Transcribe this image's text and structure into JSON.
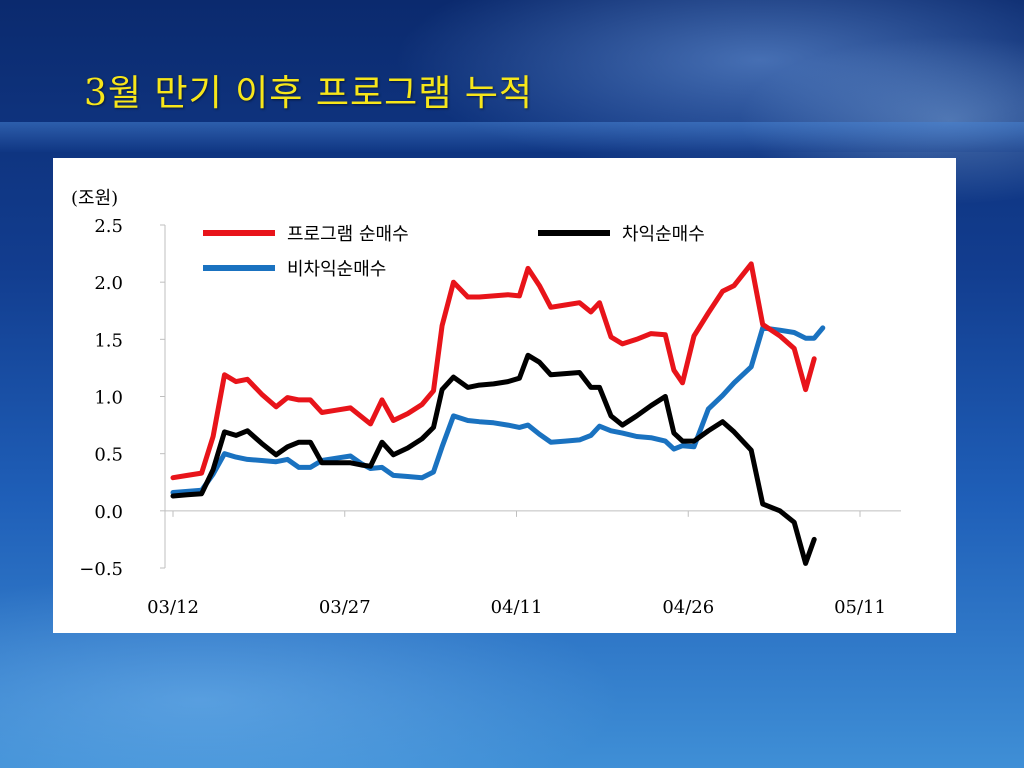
{
  "slide": {
    "title": "3월 만기 이후 프로그램 누적"
  },
  "colors": {
    "program_net_buy": "#e8141a",
    "arbitrage_net_buy": "#000000",
    "non_arbitrage_net_buy": "#1a72c0"
  },
  "chart_data": {
    "type": "line",
    "unit_label": "(조원)",
    "ylim": [
      -0.5,
      2.5
    ],
    "y_ticks": [
      "2.5",
      "2.0",
      "1.5",
      "1.0",
      "0.5",
      "0.0",
      "-0.5"
    ],
    "x_range": [
      0,
      49
    ],
    "x_ticks": [
      {
        "label": "03/12",
        "x": 0
      },
      {
        "label": "03/27",
        "x": 12
      },
      {
        "label": "04/11",
        "x": 24
      },
      {
        "label": "04/26",
        "x": 36
      },
      {
        "label": "05/11",
        "x": 48
      }
    ],
    "grid": false,
    "legend_position": "top",
    "series": [
      {
        "name": "프로그램 순매수",
        "color": "#e8141a",
        "points": [
          [
            0,
            0.29
          ],
          [
            1,
            0.31
          ],
          [
            2,
            0.33
          ],
          [
            2.8,
            0.65
          ],
          [
            3.6,
            1.19
          ],
          [
            4.4,
            1.13
          ],
          [
            5.2,
            1.15
          ],
          [
            6.2,
            1.02
          ],
          [
            7.2,
            0.91
          ],
          [
            8,
            0.99
          ],
          [
            8.8,
            0.97
          ],
          [
            9.6,
            0.97
          ],
          [
            10.4,
            0.86
          ],
          [
            11.4,
            0.88
          ],
          [
            12.4,
            0.9
          ],
          [
            13.2,
            0.82
          ],
          [
            13.8,
            0.76
          ],
          [
            14.6,
            0.97
          ],
          [
            15.4,
            0.79
          ],
          [
            16.4,
            0.85
          ],
          [
            17.4,
            0.93
          ],
          [
            18.2,
            1.05
          ],
          [
            18.8,
            1.62
          ],
          [
            19.6,
            2.0
          ],
          [
            20.6,
            1.87
          ],
          [
            21.4,
            1.87
          ],
          [
            22.4,
            1.88
          ],
          [
            23.4,
            1.89
          ],
          [
            24.2,
            1.88
          ],
          [
            24.8,
            2.12
          ],
          [
            25.6,
            1.97
          ],
          [
            26.4,
            1.78
          ],
          [
            27.4,
            1.8
          ],
          [
            28.4,
            1.82
          ],
          [
            29.2,
            1.74
          ],
          [
            29.8,
            1.82
          ],
          [
            30.6,
            1.52
          ],
          [
            31.4,
            1.46
          ],
          [
            32.4,
            1.5
          ],
          [
            33.4,
            1.55
          ],
          [
            34.4,
            1.54
          ],
          [
            35,
            1.23
          ],
          [
            35.6,
            1.12
          ],
          [
            36.4,
            1.53
          ],
          [
            37.4,
            1.73
          ],
          [
            38.4,
            1.92
          ],
          [
            39.2,
            1.97
          ],
          [
            40.4,
            2.16
          ],
          [
            41.2,
            1.63
          ],
          [
            42.4,
            1.53
          ],
          [
            43.4,
            1.42
          ],
          [
            44.2,
            1.06
          ],
          [
            44.8,
            1.33
          ]
        ]
      },
      {
        "name": "차익순매수",
        "color": "#000000",
        "points": [
          [
            0,
            0.13
          ],
          [
            1,
            0.14
          ],
          [
            2,
            0.15
          ],
          [
            2.8,
            0.36
          ],
          [
            3.6,
            0.69
          ],
          [
            4.4,
            0.66
          ],
          [
            5.2,
            0.7
          ],
          [
            6.2,
            0.59
          ],
          [
            7.2,
            0.49
          ],
          [
            8,
            0.56
          ],
          [
            8.8,
            0.6
          ],
          [
            9.6,
            0.6
          ],
          [
            10.4,
            0.42
          ],
          [
            11.4,
            0.42
          ],
          [
            12.4,
            0.42
          ],
          [
            13.2,
            0.4
          ],
          [
            13.8,
            0.39
          ],
          [
            14.6,
            0.6
          ],
          [
            15.4,
            0.49
          ],
          [
            16.4,
            0.55
          ],
          [
            17.4,
            0.63
          ],
          [
            18.2,
            0.73
          ],
          [
            18.8,
            1.06
          ],
          [
            19.6,
            1.17
          ],
          [
            20.6,
            1.08
          ],
          [
            21.4,
            1.1
          ],
          [
            22.4,
            1.11
          ],
          [
            23.4,
            1.13
          ],
          [
            24.2,
            1.16
          ],
          [
            24.8,
            1.36
          ],
          [
            25.6,
            1.3
          ],
          [
            26.4,
            1.19
          ],
          [
            27.4,
            1.2
          ],
          [
            28.4,
            1.21
          ],
          [
            29.2,
            1.08
          ],
          [
            29.8,
            1.08
          ],
          [
            30.6,
            0.83
          ],
          [
            31.4,
            0.75
          ],
          [
            32.4,
            0.83
          ],
          [
            33.4,
            0.92
          ],
          [
            34.4,
            1.0
          ],
          [
            35,
            0.68
          ],
          [
            35.6,
            0.61
          ],
          [
            36.4,
            0.61
          ],
          [
            37.4,
            0.7
          ],
          [
            38.4,
            0.78
          ],
          [
            39.2,
            0.69
          ],
          [
            40.4,
            0.53
          ],
          [
            41.2,
            0.06
          ],
          [
            42.4,
            0.0
          ],
          [
            43.4,
            -0.1
          ],
          [
            44.2,
            -0.46
          ],
          [
            44.8,
            -0.25
          ]
        ]
      },
      {
        "name": "비차익순매수",
        "color": "#1a72c0",
        "points": [
          [
            0,
            0.16
          ],
          [
            1,
            0.17
          ],
          [
            2,
            0.18
          ],
          [
            2.8,
            0.32
          ],
          [
            3.6,
            0.5
          ],
          [
            4.4,
            0.47
          ],
          [
            5.2,
            0.45
          ],
          [
            6.2,
            0.44
          ],
          [
            7.2,
            0.43
          ],
          [
            8,
            0.45
          ],
          [
            8.8,
            0.38
          ],
          [
            9.6,
            0.38
          ],
          [
            10.4,
            0.44
          ],
          [
            11.4,
            0.46
          ],
          [
            12.4,
            0.48
          ],
          [
            13.2,
            0.41
          ],
          [
            13.8,
            0.37
          ],
          [
            14.6,
            0.38
          ],
          [
            15.4,
            0.31
          ],
          [
            16.4,
            0.3
          ],
          [
            17.4,
            0.29
          ],
          [
            18.2,
            0.34
          ],
          [
            18.8,
            0.56
          ],
          [
            19.6,
            0.83
          ],
          [
            20.6,
            0.79
          ],
          [
            21.4,
            0.78
          ],
          [
            22.4,
            0.77
          ],
          [
            23.4,
            0.75
          ],
          [
            24.2,
            0.73
          ],
          [
            24.8,
            0.75
          ],
          [
            25.6,
            0.67
          ],
          [
            26.4,
            0.6
          ],
          [
            27.4,
            0.61
          ],
          [
            28.4,
            0.62
          ],
          [
            29.2,
            0.66
          ],
          [
            29.8,
            0.74
          ],
          [
            30.6,
            0.7
          ],
          [
            31.4,
            0.68
          ],
          [
            32.4,
            0.65
          ],
          [
            33.4,
            0.64
          ],
          [
            34.4,
            0.61
          ],
          [
            35,
            0.54
          ],
          [
            35.6,
            0.57
          ],
          [
            36.4,
            0.56
          ],
          [
            37.4,
            0.89
          ],
          [
            38.4,
            1.01
          ],
          [
            39.2,
            1.12
          ],
          [
            40.4,
            1.26
          ],
          [
            41.2,
            1.6
          ],
          [
            42.4,
            1.58
          ],
          [
            43.4,
            1.56
          ],
          [
            44.2,
            1.51
          ],
          [
            44.8,
            1.51
          ],
          [
            45.4,
            1.6
          ]
        ]
      }
    ]
  }
}
